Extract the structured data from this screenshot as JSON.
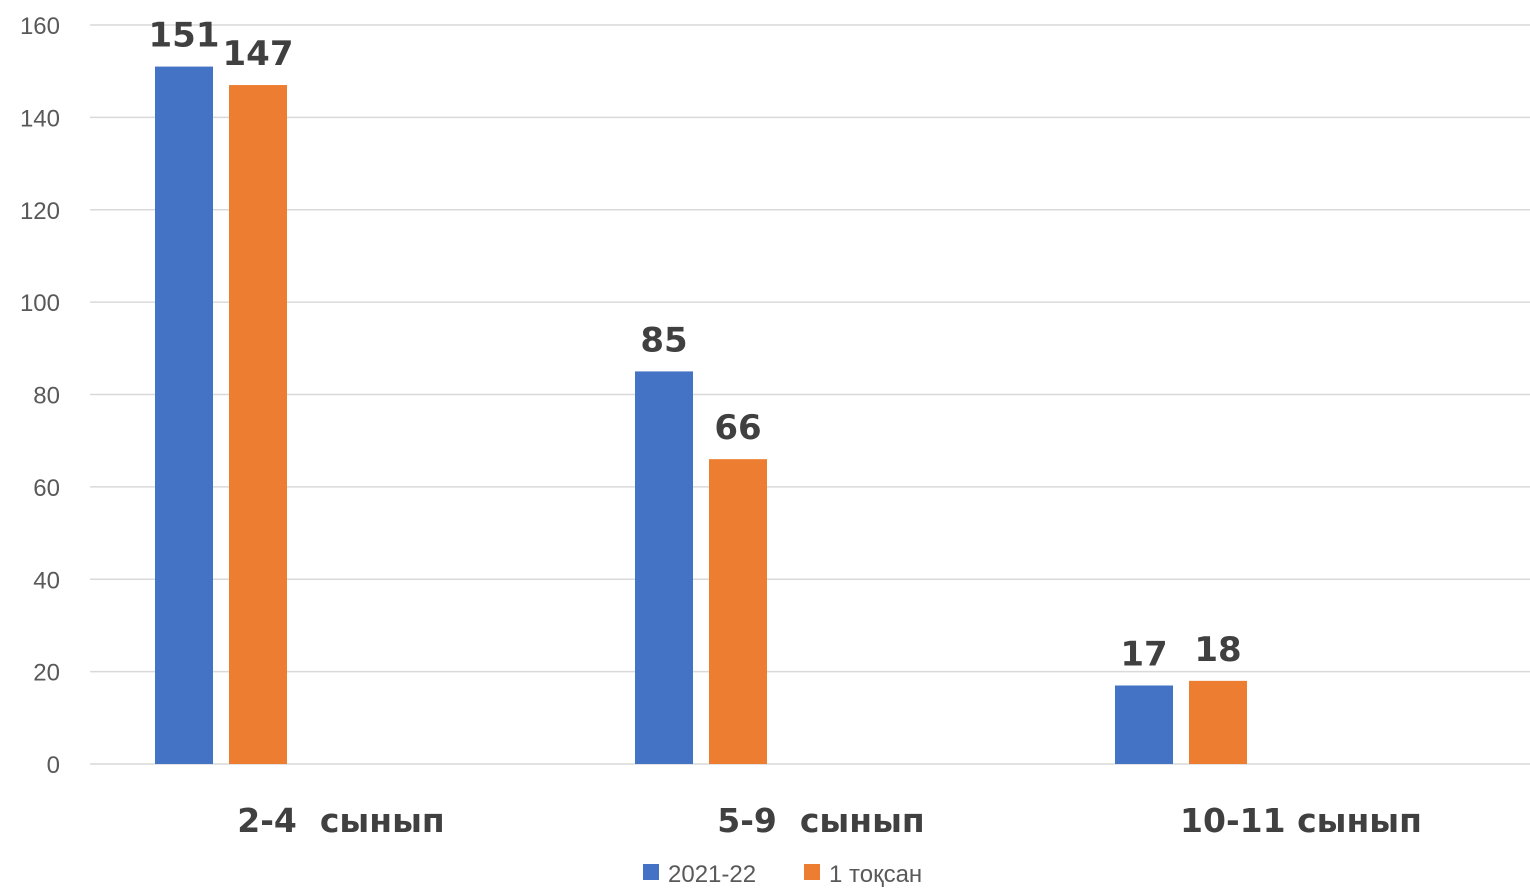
{
  "chart_data": {
    "type": "bar",
    "categories": [
      "2-4  сынып",
      "5-9  сынып",
      "10-11 сынып"
    ],
    "series": [
      {
        "name": "2021-22",
        "values": [
          151,
          85,
          17
        ],
        "color": "#4472C4"
      },
      {
        "name": "1 тоқсан",
        "values": [
          147,
          66,
          18
        ],
        "color": "#ED7D31"
      }
    ],
    "title": "",
    "xlabel": "",
    "ylabel": "",
    "ylim": [
      0,
      160
    ],
    "yticks": [
      0,
      20,
      40,
      60,
      80,
      100,
      120,
      140,
      160
    ],
    "grid": true,
    "legend": "bottom"
  }
}
